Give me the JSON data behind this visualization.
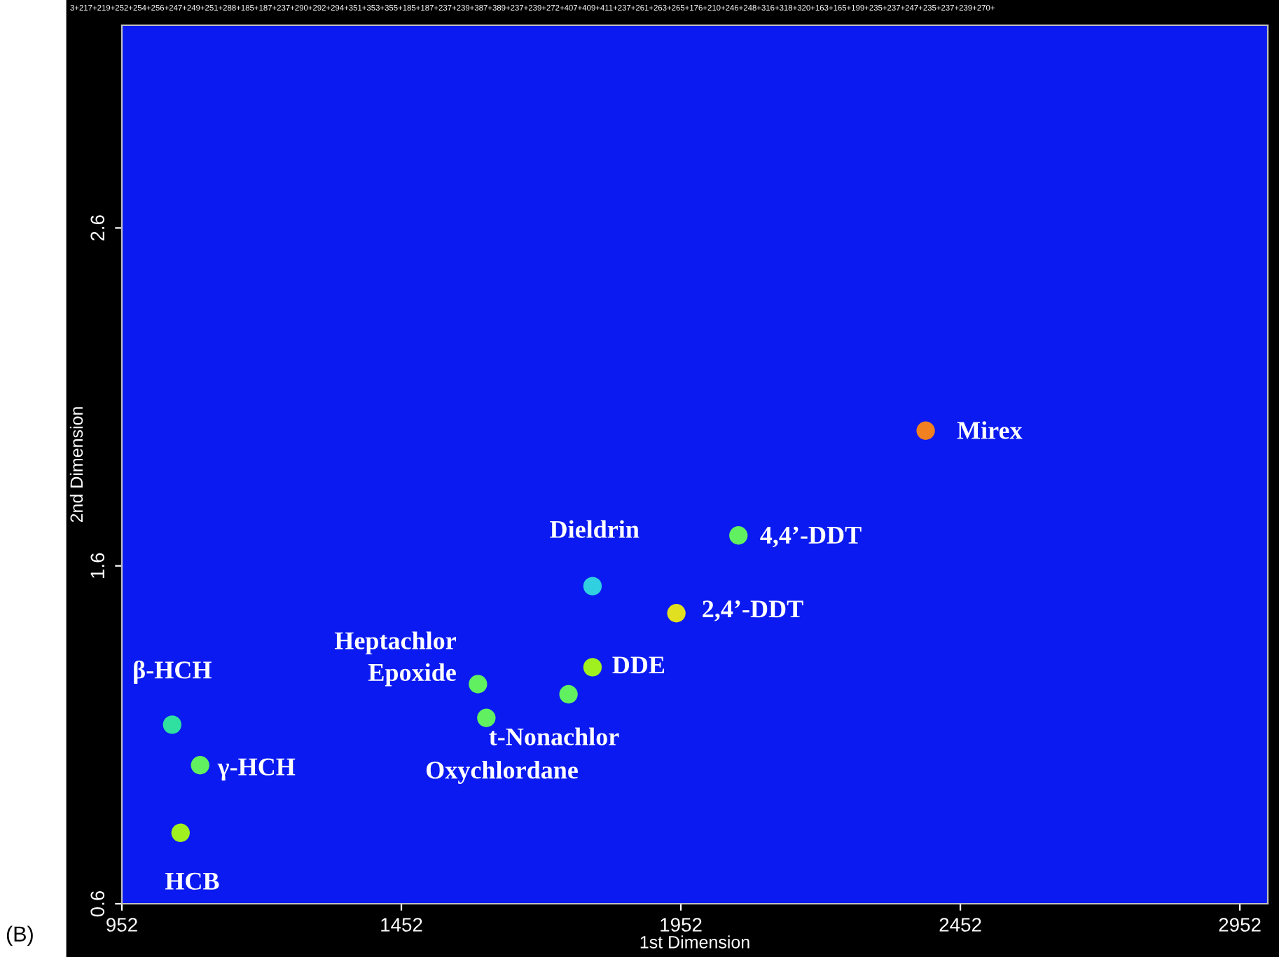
{
  "chart_data": {
    "type": "scatter",
    "xlabel": "1st Dimension",
    "ylabel": "2nd Dimension",
    "xlim": [
      952,
      3002
    ],
    "ylim": [
      0.6,
      3.2
    ],
    "xticks": [
      952,
      1452,
      1952,
      2452,
      2952
    ],
    "yticks": [
      {
        "value": 0.6,
        "label": "0.6"
      },
      {
        "value": 1.6,
        "label": "1.6"
      },
      {
        "value": 2.6,
        "label": "2.6"
      }
    ],
    "grid": false,
    "marker": "circle",
    "x": [
      1042,
      1092,
      1057,
      1589,
      1604,
      1751,
      1794,
      1794,
      1944,
      2055,
      2390
    ],
    "values": [
      1.13,
      1.01,
      0.81,
      1.25,
      1.15,
      1.22,
      1.3,
      1.54,
      1.46,
      1.69,
      2.0
    ],
    "colors": [
      "#30e0a0",
      "#60f060",
      "#a0f020",
      "#60f060",
      "#60f060",
      "#60f060",
      "#a0f020",
      "#30d0e0",
      "#e0e020",
      "#60f060",
      "#f08020"
    ],
    "annotations": [
      {
        "text": "β-HCH",
        "x": 1042,
        "y": 1.13
      },
      {
        "text": "γ-HCH",
        "x": 1092,
        "y": 1.01
      },
      {
        "text": "HCB",
        "x": 1057,
        "y": 0.81
      },
      {
        "text": "Heptachlor\nEpoxide",
        "x": 1589,
        "y": 1.25
      },
      {
        "text": "Oxychlordane",
        "x": 1604,
        "y": 1.15
      },
      {
        "text": "t-Nonachlor",
        "x": 1751,
        "y": 1.22
      },
      {
        "text": "DDE",
        "x": 1794,
        "y": 1.3
      },
      {
        "text": "Dieldrin",
        "x": 1794,
        "y": 1.54
      },
      {
        "text": "2,4’-DDT",
        "x": 1944,
        "y": 1.46
      },
      {
        "text": "4,4’-DDT",
        "x": 2055,
        "y": 1.69
      },
      {
        "text": "Mirex",
        "x": 2390,
        "y": 2.0
      },
      "3+217+219+252+254+256+247+249+251+288+185+187+237+290+292+294+351+353+355+185+187+237+239+387+389+237+239+272+407+409+411+237+261+263+265+176+210+246+248+316+318+320+163+165+199+235+237+247+235+237+239+270+",
      "(B)"
    ]
  }
}
